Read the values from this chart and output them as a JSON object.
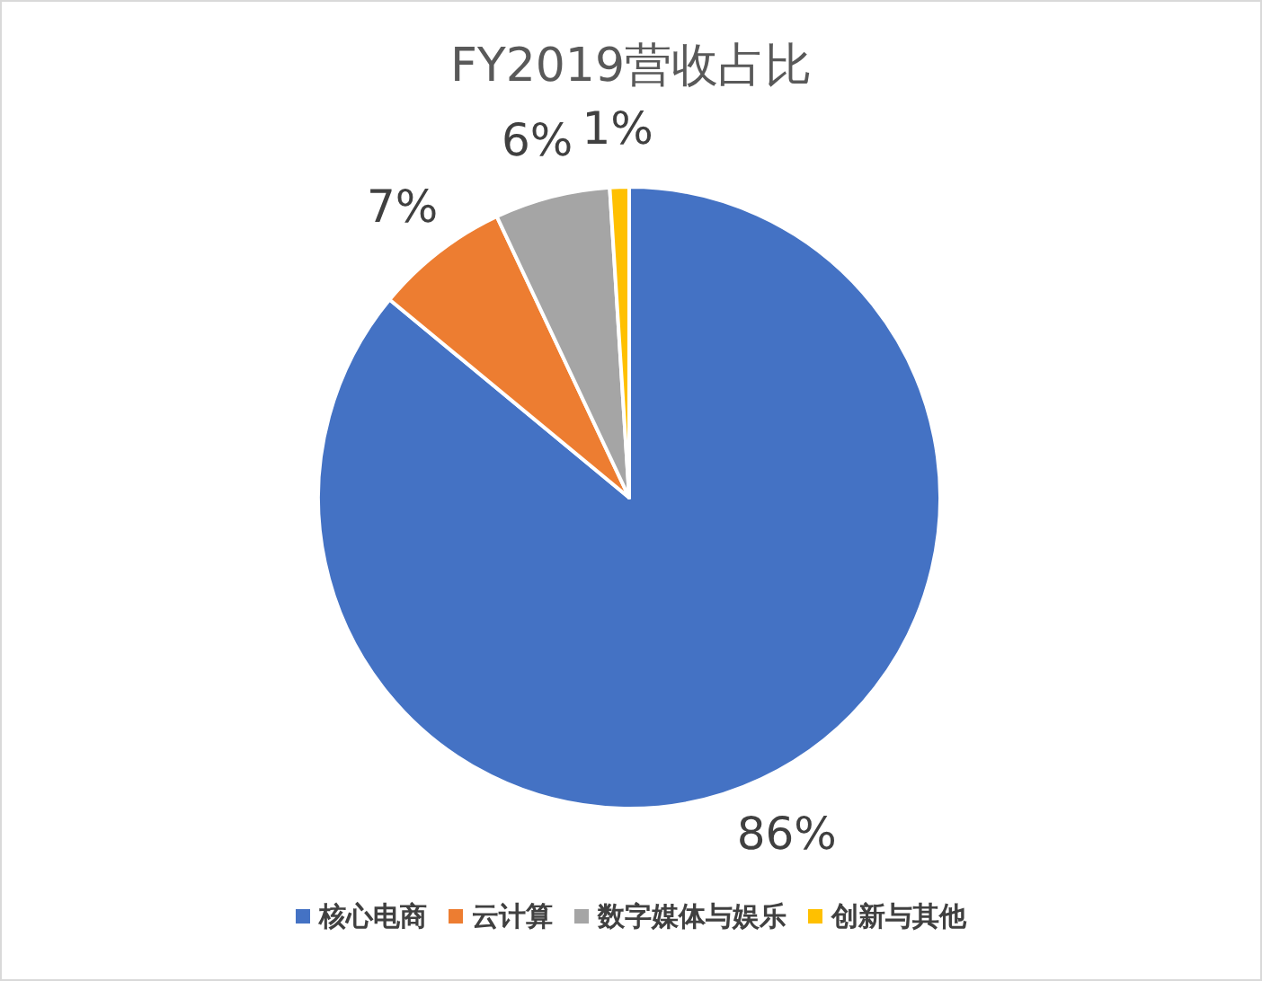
{
  "chart_data": {
    "type": "pie",
    "title": "FY2019营收占比",
    "categories": [
      "核心电商",
      "云计算",
      "数字媒体与娱乐",
      "创新与其他"
    ],
    "values": [
      86,
      7,
      6,
      1
    ],
    "colors": [
      "#4472c4",
      "#ed7d31",
      "#a5a5a5",
      "#ffc000"
    ],
    "value_labels": [
      "86%",
      "7%",
      "6%",
      "1%"
    ],
    "legend": "bottom"
  }
}
